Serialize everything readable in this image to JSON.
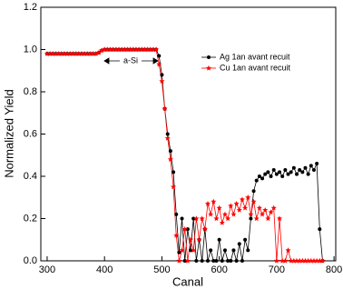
{
  "chart_data": {
    "type": "line",
    "x_label": "Canal",
    "y_label": "Normalized Yield",
    "annotation": "a-Si",
    "xlim": [
      289,
      803
    ],
    "xticks": [
      300,
      400,
      500,
      600,
      700,
      800
    ],
    "ylim": [
      0,
      1.2
    ],
    "yticks": [
      {
        "value": 0,
        "label": "0.0"
      },
      0.2,
      0.4,
      0.6,
      0.8,
      {
        "value": 1,
        "label": "1.0"
      },
      1.2
    ],
    "legend": "upper right",
    "x": [
      300,
      305,
      310,
      315,
      320,
      325,
      330,
      335,
      340,
      345,
      350,
      355,
      360,
      365,
      370,
      375,
      380,
      385,
      390,
      395,
      400,
      405,
      410,
      415,
      420,
      425,
      430,
      435,
      440,
      445,
      450,
      455,
      460,
      465,
      470,
      475,
      480,
      485,
      490,
      495,
      500,
      505,
      510,
      515,
      520,
      525,
      530,
      535,
      540,
      545,
      550,
      555,
      560,
      565,
      570,
      575,
      580,
      585,
      590,
      595,
      600,
      605,
      610,
      615,
      620,
      625,
      630,
      635,
      640,
      645,
      650,
      655,
      660,
      665,
      670,
      675,
      680,
      685,
      690,
      695,
      700,
      705,
      710,
      715,
      720,
      725,
      730,
      735,
      740,
      745,
      750,
      755,
      760,
      765,
      770,
      775,
      780
    ],
    "series": [
      {
        "name": "Ag 1an avant recuit",
        "color": "#000000",
        "marker": "circle",
        "values": [
          0.98,
          0.98,
          0.98,
          0.98,
          0.98,
          0.98,
          0.98,
          0.98,
          0.98,
          0.98,
          0.98,
          0.98,
          0.98,
          0.98,
          0.98,
          0.98,
          0.98,
          0.98,
          0.985,
          0.995,
          1.0,
          1.0,
          1.0,
          1.0,
          1.0,
          1.0,
          1.0,
          1.0,
          1.0,
          1.0,
          1.0,
          1.0,
          1.0,
          1.0,
          1.0,
          1.0,
          1.0,
          1.0,
          1.0,
          0.97,
          0.88,
          0.72,
          0.6,
          0.52,
          0.42,
          0.22,
          0.04,
          0.2,
          0.0,
          0.15,
          0.05,
          0.2,
          0.0,
          0.1,
          0.0,
          0.15,
          0.0,
          0.05,
          0.0,
          0.0,
          0.1,
          0.0,
          0.05,
          0.0,
          0.0,
          0.05,
          0.0,
          0.08,
          0.0,
          0.1,
          0.05,
          0.2,
          0.33,
          0.38,
          0.4,
          0.39,
          0.41,
          0.42,
          0.4,
          0.43,
          0.41,
          0.42,
          0.4,
          0.43,
          0.41,
          0.42,
          0.44,
          0.41,
          0.43,
          0.42,
          0.44,
          0.41,
          0.45,
          0.43,
          0.46,
          0.15,
          0.0
        ]
      },
      {
        "name": "Cu 1an avant recuit",
        "color": "#ff0000",
        "marker": "star",
        "values": [
          0.98,
          0.98,
          0.98,
          0.98,
          0.98,
          0.98,
          0.98,
          0.98,
          0.98,
          0.98,
          0.98,
          0.98,
          0.98,
          0.98,
          0.98,
          0.98,
          0.98,
          0.98,
          0.985,
          0.995,
          1.0,
          1.0,
          1.0,
          1.0,
          1.0,
          1.0,
          1.0,
          1.0,
          1.0,
          1.0,
          1.0,
          1.0,
          1.0,
          1.0,
          1.0,
          1.0,
          1.0,
          1.0,
          1.0,
          0.93,
          0.85,
          0.72,
          0.58,
          0.48,
          0.35,
          0.12,
          0.0,
          0.05,
          0.15,
          0.0,
          0.1,
          0.05,
          0.2,
          0.1,
          0.2,
          0.15,
          0.27,
          0.22,
          0.28,
          0.2,
          0.25,
          0.18,
          0.22,
          0.2,
          0.26,
          0.22,
          0.27,
          0.24,
          0.29,
          0.25,
          0.3,
          0.22,
          0.28,
          0.2,
          0.25,
          0.22,
          0.24,
          0.2,
          0.23,
          0.25,
          0.0,
          0.2,
          0.0,
          0.0,
          0.05,
          0.0,
          0.0,
          0.0,
          0.0,
          0.0,
          0.0,
          0.0,
          0.0,
          0.0,
          0.0,
          0.0,
          0.0
        ]
      }
    ]
  }
}
